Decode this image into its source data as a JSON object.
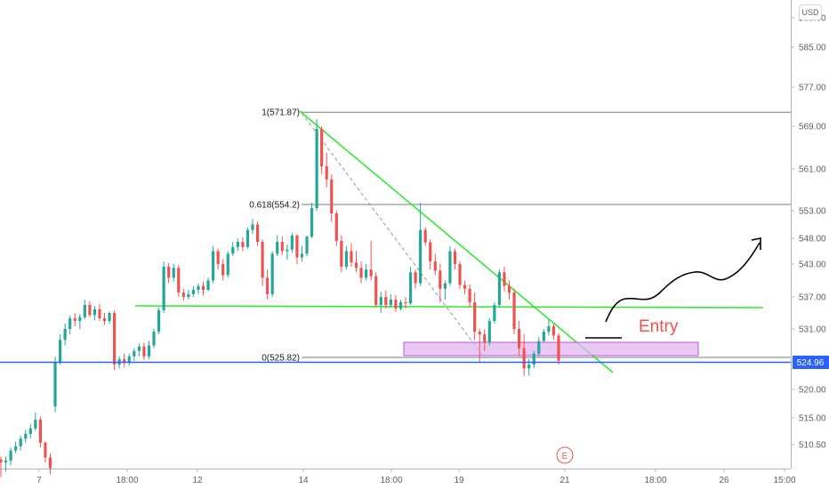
{
  "currency": "USD",
  "chart_data": {
    "type": "candlestick",
    "yaxis": {
      "ticks": [
        "590.00",
        "585.00",
        "577.00",
        "569.00",
        "561.00",
        "553.00",
        "548.00",
        "543.00",
        "537.00",
        "531.00",
        "525.00",
        "520.00",
        "515.00",
        "510.50"
      ],
      "price_min": 506,
      "price_max": 593
    },
    "xaxis": {
      "ticks": [
        "7",
        "18:00",
        "12",
        "14",
        "18:00",
        "19",
        "21",
        "18:00",
        "26",
        "15:00"
      ]
    },
    "last_price": "524.96",
    "fibonacci": [
      {
        "label": "1(571.87)",
        "price": 571.87
      },
      {
        "label": "0.618(554.2)",
        "price": 554.2
      },
      {
        "label": "0(525.82)",
        "price": 525.82
      }
    ],
    "annotations": {
      "entry_label": "Entry",
      "earnings_marker": "E",
      "support_price": 534.8,
      "entry_zone": {
        "price_top": 528.0,
        "price_bottom": 526.6
      }
    },
    "candles": [
      [
        508,
        508.5,
        505,
        507.5
      ],
      [
        507.5,
        508.5,
        506,
        507.8
      ],
      [
        507.8,
        510,
        507,
        509.5
      ],
      [
        509.5,
        511,
        509,
        510.2
      ],
      [
        510.2,
        512,
        509.5,
        511.5
      ],
      [
        511.5,
        513,
        510.8,
        512.3
      ],
      [
        512.3,
        514,
        511.5,
        513.2
      ],
      [
        513.2,
        516,
        512.8,
        514.7
      ],
      [
        514.7,
        515.2,
        510,
        510.8
      ],
      [
        510.8,
        511,
        507.5,
        508.3
      ],
      [
        508.3,
        509,
        505.5,
        506.5
      ],
      [
        517,
        526,
        516,
        525
      ],
      [
        525,
        530,
        524.5,
        529
      ],
      [
        529,
        532,
        528,
        531
      ],
      [
        531,
        533.5,
        530,
        533
      ],
      [
        533,
        534,
        531.5,
        532.5
      ],
      [
        532.5,
        533.8,
        531,
        533.2
      ],
      [
        533.2,
        536.5,
        532.8,
        535.5
      ],
      [
        535.5,
        536.2,
        533.2,
        533.6
      ],
      [
        533.6,
        535.3,
        532.6,
        534.7
      ],
      [
        534.7,
        535.7,
        532.5,
        533
      ],
      [
        533,
        534,
        531.8,
        532.5
      ],
      [
        532.5,
        534.3,
        532,
        534
      ],
      [
        534,
        534.5,
        523.5,
        524.5
      ],
      [
        524.5,
        526,
        523.8,
        525.5
      ],
      [
        525.5,
        526.5,
        524,
        524.8
      ],
      [
        524.8,
        526.5,
        524.3,
        526
      ],
      [
        526,
        527.5,
        525.2,
        527
      ],
      [
        527,
        528.3,
        526,
        527.8
      ],
      [
        527.8,
        528.5,
        525.3,
        526
      ],
      [
        526,
        528.8,
        525.5,
        528
      ],
      [
        528,
        531,
        527.5,
        530.5
      ],
      [
        530.5,
        535,
        530,
        534.5
      ],
      [
        534.5,
        543.5,
        534,
        542.5
      ],
      [
        542.5,
        543.2,
        539.5,
        540.5
      ],
      [
        540.5,
        543,
        539.8,
        542.3
      ],
      [
        542.3,
        542.8,
        537,
        537.8
      ],
      [
        537.8,
        538.5,
        536.3,
        537
      ],
      [
        537,
        538.3,
        536.5,
        537.5
      ],
      [
        537.5,
        539,
        537,
        538.3
      ],
      [
        538.3,
        539.5,
        537.5,
        539
      ],
      [
        539,
        539.8,
        537.2,
        538.3
      ],
      [
        538.3,
        540.5,
        538,
        540
      ],
      [
        540,
        546.5,
        539.5,
        545.5
      ],
      [
        545.5,
        546,
        542,
        543
      ],
      [
        543,
        544,
        540,
        541
      ],
      [
        541,
        545.5,
        540.5,
        545
      ],
      [
        545,
        547.3,
        544.5,
        546.3
      ],
      [
        546.3,
        548,
        545.5,
        547.3
      ],
      [
        547.3,
        548.2,
        545.5,
        546.3
      ],
      [
        546.3,
        550,
        546,
        549.5
      ],
      [
        549.5,
        551.5,
        548.8,
        550.5
      ],
      [
        550.5,
        551,
        546.5,
        547.3
      ],
      [
        547.3,
        547.8,
        539,
        540.5
      ],
      [
        540.5,
        542,
        536.5,
        537.5
      ],
      [
        537.5,
        545.5,
        537,
        545
      ],
      [
        545,
        548.5,
        544.5,
        547.3
      ],
      [
        547.3,
        548.3,
        544.8,
        545.5
      ],
      [
        545.5,
        546.8,
        543.8,
        545.8
      ],
      [
        545.8,
        549,
        545.2,
        548.5
      ],
      [
        548.5,
        548.7,
        543,
        544.3
      ],
      [
        544.3,
        546.5,
        543.5,
        545
      ],
      [
        545,
        548.5,
        544.5,
        548.3
      ],
      [
        548.3,
        554.5,
        548,
        553.5
      ],
      [
        553.5,
        570.5,
        553,
        568.5
      ],
      [
        568.5,
        569,
        560,
        561.5
      ],
      [
        561.5,
        564,
        557.5,
        559
      ],
      [
        559,
        560,
        551,
        552.5
      ],
      [
        552.5,
        553,
        546.5,
        547.5
      ],
      [
        547.5,
        548.5,
        541.5,
        542.5
      ],
      [
        542.5,
        546.5,
        542,
        545.5
      ],
      [
        545.5,
        547,
        542.5,
        543.3
      ],
      [
        543.3,
        545.5,
        541.5,
        542.3
      ],
      [
        542.3,
        543.5,
        539.5,
        540.5
      ],
      [
        540.5,
        543,
        540,
        542
      ],
      [
        542,
        547.5,
        540,
        540.8
      ],
      [
        540.8,
        541.5,
        535,
        535.5
      ],
      [
        535.5,
        538,
        534,
        537
      ],
      [
        537,
        538.2,
        534.8,
        535.5
      ],
      [
        535.5,
        537.5,
        535,
        536.5
      ],
      [
        536.5,
        537.3,
        534.2,
        534.8
      ],
      [
        534.8,
        536.5,
        534.5,
        536
      ],
      [
        536,
        537,
        534.8,
        535.8
      ],
      [
        535.8,
        542.5,
        535.5,
        541.5
      ],
      [
        541.5,
        542,
        538.5,
        539.5
      ],
      [
        539.5,
        554.5,
        539,
        549.5
      ],
      [
        549.5,
        550,
        546.5,
        547.2
      ],
      [
        547.2,
        547.8,
        542,
        543.5
      ],
      [
        543.5,
        545,
        541,
        541.8
      ],
      [
        541.8,
        543,
        536,
        538.5
      ],
      [
        538.5,
        540,
        536.5,
        539.5
      ],
      [
        539.5,
        546.5,
        539,
        545.5
      ],
      [
        545.5,
        546,
        542,
        543
      ],
      [
        543,
        543.5,
        538.5,
        539.2
      ],
      [
        539.2,
        540,
        537.5,
        538.5
      ],
      [
        538.5,
        539.3,
        535,
        536
      ],
      [
        536,
        537.8,
        529,
        530.5
      ],
      [
        530.5,
        531,
        525,
        530
      ],
      [
        530,
        531,
        527,
        528.5
      ],
      [
        528.5,
        533,
        528,
        532.5
      ],
      [
        532.5,
        536,
        532,
        535.5
      ],
      [
        535.5,
        542,
        535,
        541.5
      ],
      [
        541.5,
        542.5,
        538,
        539
      ],
      [
        539,
        540,
        536.5,
        537.8
      ],
      [
        537.8,
        538.5,
        530,
        531
      ],
      [
        531,
        532.5,
        526,
        527.5
      ],
      [
        527.5,
        530,
        522.5,
        523.8
      ],
      [
        523.8,
        525.5,
        522.5,
        524.5
      ],
      [
        524.5,
        527,
        523.8,
        526.5
      ],
      [
        526.5,
        529.5,
        526,
        528.8
      ],
      [
        528.8,
        531,
        528.5,
        530.5
      ],
      [
        530.5,
        532.8,
        529.8,
        531.5
      ],
      [
        531.5,
        532,
        529,
        529.8
      ],
      [
        529.8,
        530.2,
        524.5,
        525.2
      ]
    ]
  }
}
